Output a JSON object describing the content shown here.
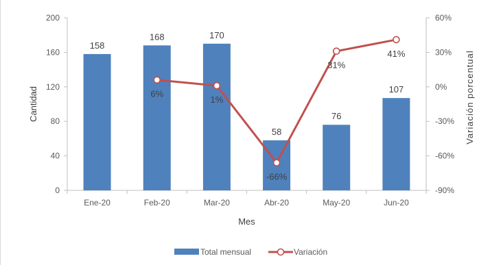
{
  "chart_data": {
    "type": "bar+line",
    "title": "",
    "xlabel": "Mes",
    "ylabel_left": "Cantidad",
    "ylabel_right": "Variación porcentual",
    "categories": [
      "Ene-20",
      "Feb-20",
      "Mar-20",
      "Abr-20",
      "May-20",
      "Jun-20"
    ],
    "y_left": {
      "min": 0,
      "max": 200,
      "ticks": [
        0,
        40,
        80,
        120,
        160,
        200
      ]
    },
    "y_right": {
      "min": -90,
      "max": 60,
      "ticks": [
        "-90%",
        "-60%",
        "-30%",
        "0%",
        "30%",
        "60%"
      ]
    },
    "grid": false,
    "legend_position": "bottom",
    "series": [
      {
        "name": "Total mensual",
        "type": "bar",
        "axis": "left",
        "color": "#4f81bd",
        "values": [
          158,
          168,
          170,
          58,
          76,
          107
        ],
        "labels": [
          "158",
          "168",
          "170",
          "58",
          "76",
          "107"
        ]
      },
      {
        "name": "Variación",
        "type": "line",
        "axis": "right",
        "color": "#c0504d",
        "values": [
          null,
          6,
          1,
          -66,
          31,
          41
        ],
        "labels": [
          "",
          "6%",
          "1%",
          "-66%",
          "31%",
          "41%"
        ]
      }
    ]
  }
}
